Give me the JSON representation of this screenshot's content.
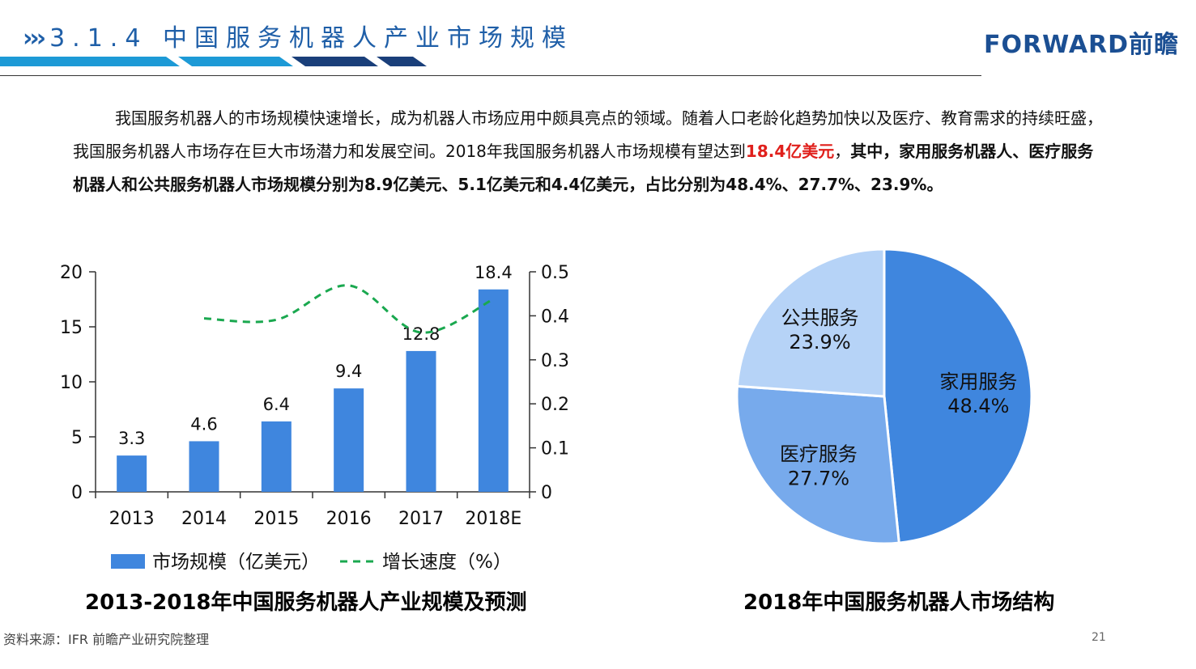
{
  "header": {
    "chevrons": "›››",
    "title": "3.1.4 中国服务机器人产业市场规模",
    "logo": "FORWARD前瞻"
  },
  "intro": {
    "part1": "我国服务机器人的市场规模快速增长，成为机器人市场应用中颇具亮点的领域。随着人口老龄化趋势加快以及医疗、教育需求的持续旺盛，我国服务机器人市场存在巨大市场潜力和发展空间。2018年我国服务机器人市场规模有望达到",
    "highlight": "18.4亿美元",
    "comma": "，",
    "bold_part": "其中，家用服务机器人、医疗服务机器人和公共服务机器人市场规模分别为8.9亿美元、5.1亿美元和4.4亿美元，占比分别为48.4%、27.7%、23.9%。"
  },
  "chart_data": [
    {
      "type": "bar",
      "title": "2013-2018年中国服务机器人产业规模及预测",
      "categories": [
        "2013",
        "2014",
        "2015",
        "2016",
        "2017",
        "2018E"
      ],
      "series": [
        {
          "name": "市场规模（亿美元）",
          "type": "bar",
          "axis": "left",
          "values": [
            3.3,
            4.6,
            6.4,
            9.4,
            12.8,
            18.4
          ],
          "labels": [
            "3.3",
            "4.6",
            "6.4",
            "9.4",
            "12.8",
            "18.4"
          ],
          "color": "#3f86de"
        },
        {
          "name": "增长速度（%）",
          "type": "line",
          "style": "dashed",
          "axis": "right",
          "values": [
            null,
            0.394,
            0.391,
            0.469,
            0.362,
            0.438
          ],
          "color": "#1aa84f"
        }
      ],
      "ylim_left": [
        0,
        20
      ],
      "yticks_left": [
        "0",
        "5",
        "10",
        "15",
        "20"
      ],
      "ylim_right": [
        0,
        0.5
      ],
      "yticks_right": [
        "0",
        "0.1",
        "0.2",
        "0.3",
        "0.4",
        "0.5"
      ],
      "legend_position": "bottom",
      "grid": false
    },
    {
      "type": "pie",
      "title": "2018年中国服务机器人市场结构",
      "slices": [
        {
          "label": "家用服务",
          "value": 48.4,
          "text": "48.4%",
          "color": "#3f86de"
        },
        {
          "label": "医疗服务",
          "value": 27.7,
          "text": "27.7%",
          "color": "#77aaec"
        },
        {
          "label": "公共服务",
          "value": 23.9,
          "text": "23.9%",
          "color": "#b6d3f7"
        }
      ]
    }
  ],
  "footer": {
    "source": "资料来源：IFR 前瞻产业研究院整理",
    "page": "21"
  },
  "colors": {
    "header_blue": "#1f5fa8",
    "stripe_light": "#1d9ad6",
    "stripe_dark": "#1a3f7a",
    "highlight_red": "#e0201c"
  }
}
